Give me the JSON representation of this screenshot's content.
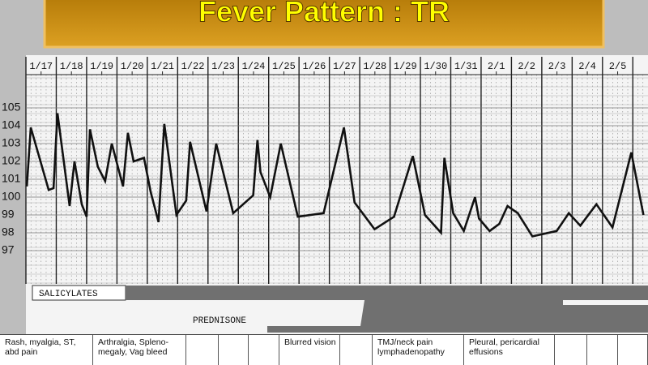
{
  "chart_data": {
    "type": "line",
    "title": "Fever Pattern : TR",
    "color": "#111111",
    "x": [
      0.03,
      0.16,
      0.75,
      0.91,
      1.04,
      1.44,
      1.6,
      1.84,
      2.0,
      2.11,
      2.37,
      2.61,
      2.83,
      3.2,
      3.36,
      3.55,
      3.89,
      4.11,
      4.37,
      4.56,
      4.96,
      5.28,
      5.41,
      5.95,
      6.27,
      6.83,
      7.49,
      7.63,
      7.73,
      8.05,
      8.4,
      8.96,
      9.81,
      10.48,
      10.83,
      11.49,
      12.13,
      12.75,
      13.15,
      13.68,
      13.79,
      14.08,
      14.43,
      14.8,
      14.93,
      15.28,
      15.6,
      15.87,
      16.21,
      16.69,
      17.49,
      17.89,
      18.27,
      18.8,
      19.33,
      19.95,
      20.35
    ],
    "values": [
      100.6,
      103.9,
      100.4,
      100.5,
      104.7,
      99.5,
      102.0,
      99.6,
      98.9,
      103.8,
      101.7,
      100.9,
      103.0,
      100.6,
      103.6,
      102.0,
      102.2,
      100.3,
      98.6,
      104.1,
      99.0,
      99.8,
      103.1,
      99.2,
      103.0,
      99.1,
      100.1,
      103.2,
      101.4,
      100.0,
      103.0,
      98.9,
      99.1,
      103.9,
      99.7,
      98.2,
      98.9,
      102.3,
      99.0,
      98.0,
      102.2,
      99.1,
      98.1,
      100.0,
      98.8,
      98.1,
      98.5,
      99.5,
      99.1,
      97.8,
      98.1,
      99.1,
      98.4,
      99.6,
      98.3,
      102.5,
      99.0
    ],
    "xlim": [
      0,
      20.5
    ],
    "xticks": [
      {
        "value": 0.5,
        "label": "1/17"
      },
      {
        "value": 1.5,
        "label": "1/18"
      },
      {
        "value": 2.5,
        "label": "1/19"
      },
      {
        "value": 3.5,
        "label": "1/20"
      },
      {
        "value": 4.5,
        "label": "1/21"
      },
      {
        "value": 5.5,
        "label": "1/22"
      },
      {
        "value": 6.5,
        "label": "1/23"
      },
      {
        "value": 7.5,
        "label": "1/24"
      },
      {
        "value": 8.5,
        "label": "1/25"
      },
      {
        "value": 9.5,
        "label": "1/26"
      },
      {
        "value": 10.5,
        "label": "1/27"
      },
      {
        "value": 11.5,
        "label": "1/28"
      },
      {
        "value": 12.5,
        "label": "1/29"
      },
      {
        "value": 13.5,
        "label": "1/30"
      },
      {
        "value": 14.5,
        "label": "1/31"
      },
      {
        "value": 15.5,
        "label": "2/1"
      },
      {
        "value": 16.5,
        "label": "2/2"
      },
      {
        "value": 17.5,
        "label": "2/3"
      },
      {
        "value": 18.5,
        "label": "2/4"
      },
      {
        "value": 19.5,
        "label": "2/5"
      }
    ],
    "ylim": [
      96.5,
      105.5
    ],
    "yticks": [
      97,
      98,
      99,
      100,
      101,
      102,
      103,
      104,
      105
    ],
    "grid": true
  },
  "medications": [
    "SALICYLATES",
    "PREDNISONE"
  ],
  "notes": [
    "Rash, myalgia, ST, abd pain",
    "Arthralgia, Spleno-megaly, Vag bleed",
    "Blurred vision",
    "TMJ/neck pain lymphadenopathy",
    "Pleural, pericardial effusions"
  ]
}
